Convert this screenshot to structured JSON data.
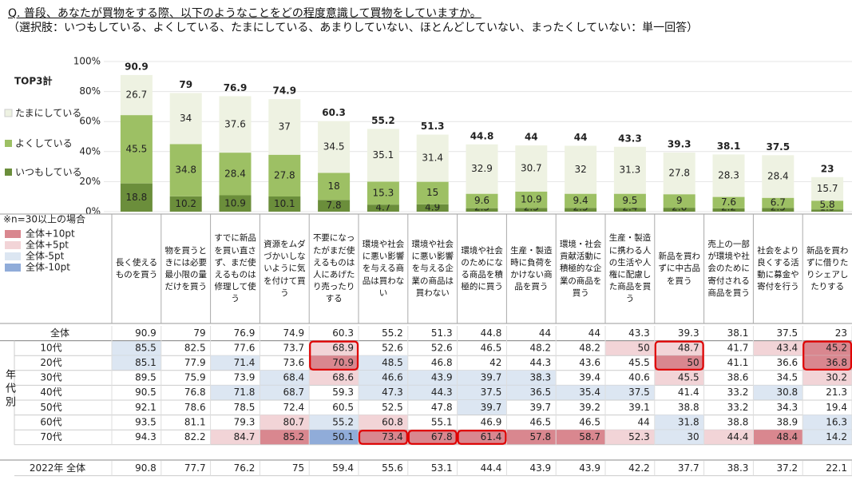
{
  "question": {
    "title": "Q. 普段、あなたが買物をする際、以下のようなことをどの程度意識して買物をしていますか。",
    "note": "（選択肢：いつもしている、よくしている、たまにしている、あまりしていない、ほとんどしていない、まったくしていない：単一回答）"
  },
  "chart_data": {
    "type": "bar",
    "stacked": true,
    "categories": [
      "長く使えるものを買う",
      "物を買うときには必要最小限の量だけを買う",
      "すでに新品を買い直さず、まだ使えるものは修理して使う",
      "資源をムダづかいしないように気を付けて買う",
      "不要になったがまだ使えるものは人にあげたり売ったりする",
      "環境や社会に悪い影響を与える商品は買わない",
      "環境や社会に悪い影響を与える企業の商品は買わない",
      "環境や社会のためになる商品を積極的に買う",
      "生産・製造時に負荷をかけない商品を買う",
      "環境・社会貢献活動に積極的な企業の商品を買う",
      "生産・製造に携わる人の生活や人権に配慮した商品を買う",
      "新品を買わずに中古品を買う",
      "売上の一部が環境や社会のために寄付される商品を買う",
      "社会をより良くする活動に募金や寄付を行う",
      "新品を買わずに借りたりシェアしたりする"
    ],
    "series": [
      {
        "name": "いつもしている",
        "color": "#6b8e3b",
        "values": [
          18.8,
          10.2,
          10.9,
          10.1,
          7.8,
          4.7,
          4.9,
          2.3,
          2.5,
          2.5,
          2.4,
          2.6,
          2.2,
          2.5,
          1.5
        ]
      },
      {
        "name": "よくしている",
        "color": "#9dc064",
        "values": [
          45.5,
          34.8,
          28.4,
          27.8,
          18.0,
          15.3,
          15.0,
          9.6,
          10.9,
          9.4,
          9.5,
          9.0,
          7.6,
          6.7,
          5.8
        ]
      },
      {
        "name": "たまにしている",
        "color": "#eef2e2",
        "values": [
          26.7,
          34.0,
          37.6,
          37.0,
          34.5,
          35.1,
          31.4,
          32.9,
          30.7,
          32.0,
          31.3,
          27.8,
          28.3,
          28.4,
          15.7
        ]
      }
    ],
    "totals": {
      "name": "TOP3計",
      "color": "#5b4fd0",
      "values": [
        90.9,
        79.0,
        76.9,
        74.9,
        60.3,
        55.2,
        51.3,
        44.8,
        44.0,
        44.0,
        43.3,
        39.3,
        38.1,
        37.5,
        23.0
      ]
    },
    "ylim": [
      0,
      100
    ],
    "yticks": [
      {
        "value": 0,
        "label": "0%"
      },
      {
        "value": 20,
        "label": "20%"
      },
      {
        "value": 40,
        "label": "40%"
      },
      {
        "value": 60,
        "label": "60%"
      },
      {
        "value": 80,
        "label": "80%"
      },
      {
        "value": 100,
        "label": "100%"
      }
    ],
    "grid": true
  },
  "table": {
    "group_label": "年代別",
    "note": "※n=30以上の場合",
    "shading": [
      {
        "label": "全体+10pt",
        "threshold": 10,
        "color": "#d9878f"
      },
      {
        "label": "全体+5pt",
        "threshold": 5,
        "color": "#f2d4d7"
      },
      {
        "label": "全体-5pt",
        "threshold": -5,
        "color": "#dce6f2"
      },
      {
        "label": "全体-10pt",
        "threshold": -10,
        "color": "#90acd9"
      }
    ],
    "rows": [
      {
        "label": "全体",
        "values": [
          90.9,
          79.0,
          76.9,
          74.9,
          60.3,
          55.2,
          51.3,
          44.8,
          44.0,
          44.0,
          43.3,
          39.3,
          38.1,
          37.5,
          23.0
        ]
      },
      {
        "label": "10代",
        "values": [
          85.5,
          82.5,
          77.6,
          73.7,
          68.9,
          52.6,
          52.6,
          46.5,
          48.2,
          48.2,
          50.0,
          48.7,
          41.7,
          43.4,
          45.2
        ]
      },
      {
        "label": "20代",
        "values": [
          85.1,
          77.9,
          71.4,
          73.6,
          70.9,
          48.5,
          46.8,
          42.0,
          44.3,
          43.6,
          45.5,
          50.0,
          41.1,
          36.6,
          36.8
        ]
      },
      {
        "label": "30代",
        "values": [
          89.5,
          75.9,
          73.9,
          68.4,
          68.6,
          46.6,
          43.9,
          39.7,
          38.3,
          39.4,
          40.6,
          45.5,
          38.6,
          34.5,
          30.2
        ]
      },
      {
        "label": "40代",
        "values": [
          90.5,
          76.8,
          71.8,
          68.7,
          59.3,
          47.3,
          44.3,
          37.5,
          36.5,
          35.4,
          37.5,
          41.4,
          33.2,
          30.8,
          21.3
        ]
      },
      {
        "label": "50代",
        "values": [
          92.1,
          78.6,
          78.5,
          72.4,
          60.5,
          52.5,
          47.8,
          39.7,
          39.7,
          39.2,
          39.1,
          38.8,
          33.2,
          34.3,
          19.4
        ]
      },
      {
        "label": "60代",
        "values": [
          93.5,
          81.1,
          79.3,
          80.7,
          55.2,
          60.8,
          55.1,
          46.9,
          46.5,
          46.5,
          44.0,
          31.8,
          38.8,
          38.9,
          16.3
        ]
      },
      {
        "label": "70代",
        "values": [
          94.3,
          82.2,
          84.7,
          85.2,
          50.1,
          73.4,
          67.8,
          61.4,
          57.8,
          58.7,
          52.3,
          30.0,
          44.4,
          48.4,
          14.2
        ]
      }
    ],
    "comparison": {
      "label": "2022年 全体",
      "values": [
        90.8,
        77.7,
        76.2,
        75.0,
        59.4,
        55.6,
        53.1,
        44.4,
        43.9,
        43.9,
        42.2,
        37.7,
        38.3,
        37.2,
        22.1
      ]
    }
  }
}
